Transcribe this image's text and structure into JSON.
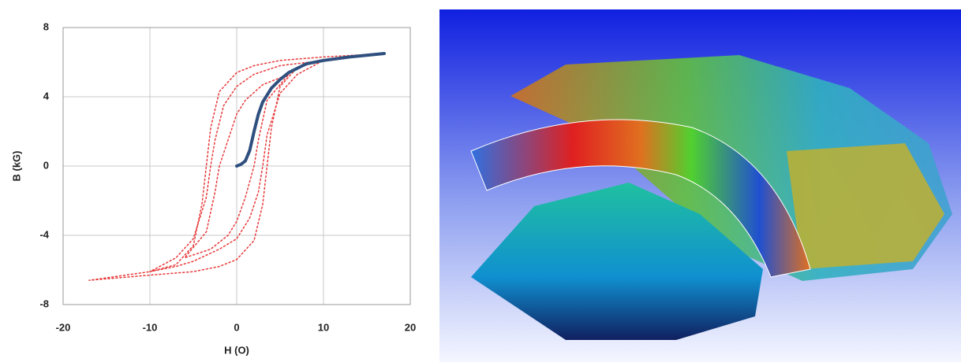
{
  "chart_data": {
    "type": "line",
    "x_label": "H (O)",
    "y_label": "B (kG)",
    "xlim": [
      -20,
      20
    ],
    "xticks": [
      -20,
      -10,
      0,
      10,
      20
    ],
    "ylim": [
      -8,
      8
    ],
    "yticks": [
      -8,
      -4,
      0,
      4,
      8
    ],
    "grid": true,
    "series": [
      {
        "color": "#e8393a",
        "style": "dotted",
        "x": [
          17,
          10,
          5,
          2,
          0,
          -2,
          -3,
          -3.5,
          -4,
          -5,
          -7,
          -10,
          -17,
          -10,
          -5,
          -2,
          0,
          2,
          3,
          3.5,
          4,
          5,
          7,
          10,
          17
        ],
        "values": [
          6.5,
          6.3,
          6.1,
          5.8,
          5.4,
          4.3,
          2.2,
          0,
          -2.2,
          -4.6,
          -5.7,
          -6.1,
          -6.6,
          -6.3,
          -6.1,
          -5.8,
          -5.4,
          -4.3,
          -2.2,
          0,
          2.2,
          4.6,
          5.7,
          6.1,
          6.5
        ]
      },
      {
        "color": "#e8393a",
        "style": "dotted",
        "x": [
          10,
          5,
          2,
          0,
          -1.5,
          -2.5,
          -3,
          -3.5,
          -5,
          -7,
          -10,
          -7,
          -5,
          -2,
          0,
          1.5,
          2.5,
          3,
          3.5,
          5,
          7,
          10
        ],
        "values": [
          6.1,
          5.8,
          5.3,
          4.6,
          3.5,
          1.5,
          0,
          -1.8,
          -4.2,
          -5.3,
          -6.1,
          -5.8,
          -5.5,
          -4.8,
          -4.2,
          -3,
          -1.5,
          0,
          1.8,
          4.2,
          5.3,
          6.1
        ]
      },
      {
        "color": "#e8393a",
        "style": "dotted",
        "x": [
          6,
          3,
          1,
          0,
          -1,
          -2,
          -2.5,
          -3.5,
          -6,
          -3,
          -1,
          0,
          1,
          2,
          2.5,
          3.5,
          6
        ],
        "values": [
          5.3,
          4.7,
          3.8,
          3,
          1.5,
          0,
          -1.5,
          -3.8,
          -5.3,
          -4.8,
          -4,
          -3.2,
          -1.8,
          0,
          1.5,
          3.8,
          5.3
        ]
      },
      {
        "color": "#2f4f7f",
        "style": "solid",
        "x": [
          0,
          0.5,
          1,
          1.5,
          2,
          2.5,
          3,
          4,
          5,
          6,
          8,
          10,
          13,
          17
        ],
        "values": [
          0,
          0.1,
          0.3,
          0.9,
          2,
          3,
          3.7,
          4.5,
          5,
          5.4,
          5.9,
          6.1,
          6.3,
          6.5
        ]
      }
    ]
  }
}
